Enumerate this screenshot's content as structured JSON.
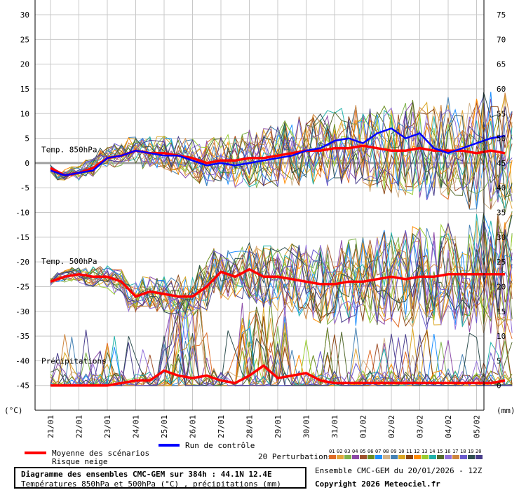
{
  "chart_data": {
    "type": "line",
    "title": "Diagramme des ensembles CMC-GEM sur 384h : 44.1N 12.4E",
    "subtitle": "Températures 850hPa et 500hPa (°C) , précipitations (mm)",
    "run_label": "Ensemble CMC-GEM du 20/01/2026 - 12Z",
    "copyright": "Copyright 2026 Meteociel.fr",
    "left_unit": "(°C)",
    "right_unit": "(mm)",
    "left_ticks": [
      30,
      25,
      20,
      15,
      10,
      5,
      0,
      -5,
      -10,
      -15,
      -20,
      -25,
      -30,
      -35,
      -40,
      -45
    ],
    "right_ticks": [
      75,
      70,
      65,
      60,
      55,
      50,
      45,
      40,
      35,
      30,
      25,
      20,
      15,
      10,
      5,
      0
    ],
    "ylim": [
      -50,
      30
    ],
    "x_labels": [
      "21/01",
      "22/01",
      "23/01",
      "24/01",
      "25/01",
      "26/01",
      "27/01",
      "28/01",
      "29/01",
      "30/01",
      "31/01",
      "01/02",
      "02/02",
      "03/02",
      "04/02",
      "05/02"
    ],
    "panel_labels": {
      "t850": "Temp. 850hPa",
      "t500": "Temp. 500hPa",
      "precip": "Précipitations"
    },
    "legend": {
      "mean": "Moyenne des scénarios",
      "snow": "Risque neige",
      "control": "Run de contrôle",
      "perturbations": "20 Perturbations"
    },
    "perturbation_ids": [
      "01",
      "02",
      "03",
      "04",
      "05",
      "06",
      "07",
      "08",
      "09",
      "10",
      "11",
      "12",
      "13",
      "14",
      "15",
      "16",
      "17",
      "18",
      "19",
      "20"
    ],
    "perturbation_colors": [
      "#e06c27",
      "#e2a63c",
      "#7fb24c",
      "#8c4aa8",
      "#a0522d",
      "#6b8e23",
      "#1e90ff",
      "#d2b48c",
      "#4682b4",
      "#daa520",
      "#8b4513",
      "#ff8c00",
      "#9acd32",
      "#20b2aa",
      "#556b2f",
      "#9370db",
      "#cd853f",
      "#6a5acd",
      "#2f4f4f",
      "#483d8b"
    ],
    "colors": {
      "mean": "#ff0000",
      "control": "#0000ff",
      "zero_line": "#a0a0a0",
      "grid": "#c8c8c8"
    },
    "series_mean": {
      "x": [
        0,
        0.5,
        1,
        1.5,
        2,
        2.5,
        3,
        3.5,
        4,
        4.5,
        5,
        5.5,
        6,
        6.5,
        7,
        7.5,
        8,
        8.5,
        9,
        9.5,
        10,
        10.5,
        11,
        11.5,
        12,
        12.5,
        13,
        13.5,
        14,
        14.5,
        15,
        15.5,
        16
      ],
      "t850": [
        -1,
        -2.5,
        -2,
        -1,
        1,
        1.5,
        2.5,
        2,
        2,
        1.5,
        1,
        0,
        0.5,
        0.5,
        1,
        1,
        1.5,
        2,
        2.5,
        2.5,
        3,
        3,
        3.5,
        3,
        2.5,
        2.5,
        3,
        2.5,
        2.5,
        2.5,
        2,
        2.5,
        2
      ],
      "t500": [
        -24,
        -23,
        -22.5,
        -23,
        -23,
        -24,
        -27,
        -26,
        -26.5,
        -27,
        -27,
        -25,
        -22,
        -23,
        -21.5,
        -23,
        -23,
        -23.5,
        -24,
        -24.5,
        -24.5,
        -24,
        -24,
        -23.5,
        -23,
        -23.5,
        -23,
        -23,
        -22.5,
        -22.5,
        -22.5,
        -22.5,
        -22.5
      ],
      "precip": [
        0,
        0,
        0,
        0,
        0,
        0.5,
        1,
        1,
        3,
        2,
        1.5,
        2,
        1,
        0.5,
        2,
        4,
        1.5,
        2,
        2.5,
        1,
        0.5,
        0.5,
        0.5,
        0.5,
        0.5,
        0.5,
        0.5,
        0.5,
        0.5,
        0.5,
        0.5,
        0.5,
        1
      ]
    },
    "series_control": {
      "x": [
        0,
        0.5,
        1,
        1.5,
        2,
        2.5,
        3,
        3.5,
        4,
        4.5,
        5,
        5.5,
        6,
        6.5,
        7,
        7.5,
        8,
        8.5,
        9,
        9.5,
        10,
        10.5,
        11,
        11.5,
        12,
        12.5,
        13,
        13.5,
        14,
        14.5,
        15,
        15.5,
        16
      ],
      "t850": [
        -1.5,
        -2.5,
        -2,
        -1.5,
        1,
        1.5,
        2.5,
        2,
        1.5,
        1.5,
        0.5,
        -0.5,
        0,
        -0.5,
        0,
        0.5,
        1,
        1.5,
        2.5,
        3,
        4.5,
        5,
        4,
        6,
        7,
        5,
        6,
        3,
        2,
        3,
        4,
        5,
        5.5
      ]
    }
  }
}
